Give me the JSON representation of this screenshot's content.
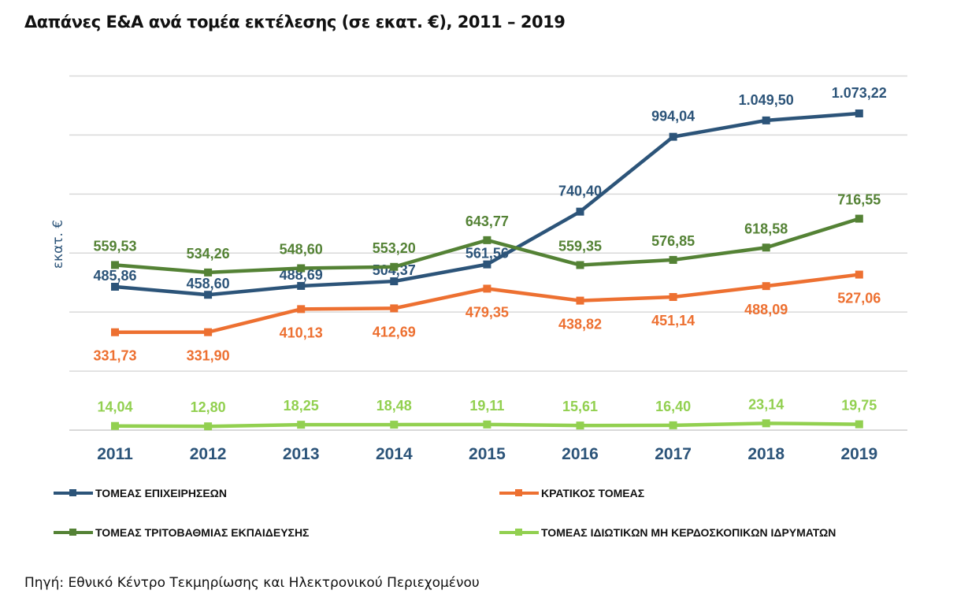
{
  "chart_data": {
    "type": "line",
    "title": "Δαπάνες Ε&Α ανά τομέα εκτέλεσης (σε εκατ. €), 2011 – 2019",
    "ylabel": "εκατ. €",
    "xlabel": "",
    "categories": [
      "2011",
      "2012",
      "2013",
      "2014",
      "2015",
      "2016",
      "2017",
      "2018",
      "2019"
    ],
    "ylim": [
      0,
      1200
    ],
    "grid": true,
    "legend_position": "bottom",
    "series": [
      {
        "name": "ΤΟΜΕΑΣ ΕΠΙΧΕΙΡΗΣΕΩΝ",
        "color": "#2c5479",
        "values": [
          485.86,
          458.6,
          488.69,
          504.37,
          561.56,
          740.4,
          994.04,
          1049.5,
          1073.22
        ],
        "labels": [
          "485,86",
          "458,60",
          "488,69",
          "504,37",
          "561,56",
          "740,40",
          "994,04",
          "1.049,50",
          "1.073,22"
        ]
      },
      {
        "name": "ΚΡΑΤΙΚΟΣ ΤΟΜΕΑΣ",
        "color": "#ed7031",
        "values": [
          331.73,
          331.9,
          410.13,
          412.69,
          479.35,
          438.82,
          451.14,
          488.09,
          527.06
        ],
        "labels": [
          "331,73",
          "331,90",
          "410,13",
          "412,69",
          "479,35",
          "438,82",
          "451,14",
          "488,09",
          "527,06"
        ]
      },
      {
        "name": "ΤΟΜΕΑΣ ΤΡΙΤΟΒΑΘΜΙΑΣ ΕΚΠΑΙΔΕΥΣΗΣ",
        "color": "#548235",
        "values": [
          559.53,
          534.26,
          548.6,
          553.2,
          643.77,
          559.35,
          576.85,
          618.58,
          716.55
        ],
        "labels": [
          "559,53",
          "534,26",
          "548,60",
          "553,20",
          "643,77",
          "559,35",
          "576,85",
          "618,58",
          "716,55"
        ]
      },
      {
        "name": "ΤΟΜΕΑΣ ΙΔΙΩΤΙΚΩΝ ΜΗ ΚΕΡΔΟΣΚΟΠΙΚΩΝ ΙΔΡΥΜΑΤΩΝ",
        "color": "#92d050",
        "values": [
          14.04,
          12.8,
          18.25,
          18.48,
          19.11,
          15.61,
          16.4,
          23.14,
          19.75
        ],
        "labels": [
          "14,04",
          "12,80",
          "18,25",
          "18,48",
          "19,11",
          "15,61",
          "16,40",
          "23,14",
          "19,75"
        ]
      }
    ]
  },
  "source": "Πηγή: Εθνικό Κέντρο Τεκμηρίωσης και Ηλεκτρονικού Περιεχομένου"
}
